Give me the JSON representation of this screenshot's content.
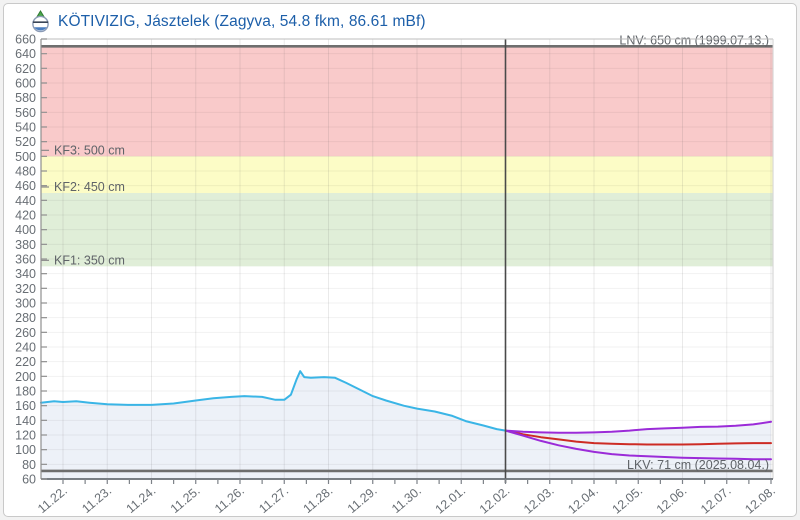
{
  "header": {
    "title": "KÖTIVIZIG, Jásztelek (Zagyva, 54.8 fkm, 86.61 mBf)"
  },
  "colors": {
    "title": "#1d5fa9",
    "observed": "#3ab5e6",
    "forecast_mean": "#cd2b24",
    "forecast_range": "#9b2bd8",
    "reference_line": "#6e6e6e",
    "now_line": "#4a4a4a",
    "band_flood3": "#f9caca",
    "band_flood2": "#fcfcc6",
    "band_flood1": "#e0eed8",
    "area_fill": "#edf1f8",
    "axis_text": "#686e74",
    "label_text": "#5f6368"
  },
  "chart_data": {
    "type": "line",
    "title": "KÖTIVIZIG, Jásztelek (Zagyva, 54.8 fkm, 86.61 mBf)",
    "ylim": [
      60,
      660
    ],
    "y_tick_step": 20,
    "grid": true,
    "x_labels": [
      "11.22.",
      "11.23.",
      "11.24.",
      "11.25.",
      "11.26.",
      "11.27.",
      "11.28.",
      "11.29.",
      "11.30.",
      "12.01.",
      "12.02.",
      "12.03.",
      "12.04.",
      "12.05.",
      "12.06.",
      "12.07.",
      "12.08."
    ],
    "now_index": 10,
    "bands": [
      {
        "id": "flood3",
        "from": 500,
        "to": 650,
        "color": "#f9caca"
      },
      {
        "id": "flood2",
        "from": 450,
        "to": 500,
        "color": "#fcfcc6"
      },
      {
        "id": "flood1",
        "from": 350,
        "to": 450,
        "color": "#e0eed8"
      }
    ],
    "levels": [
      {
        "id": "lnv",
        "label": "LNV: 650 cm (1999.07.13.)",
        "value": 650,
        "line": true,
        "side": "right",
        "dash": false
      },
      {
        "id": "kf3",
        "label": "KF3: 500 cm",
        "value": 500,
        "line": false,
        "side": "left",
        "dash": true
      },
      {
        "id": "kf2",
        "label": "KF2: 450 cm",
        "value": 450,
        "line": false,
        "side": "left",
        "dash": true
      },
      {
        "id": "kf1",
        "label": "KF1: 350 cm",
        "value": 350,
        "line": false,
        "side": "left",
        "dash": true
      },
      {
        "id": "lkv",
        "label": "LKV: 71 cm (2025.08.04.)",
        "value": 71,
        "line": true,
        "side": "right",
        "dash": false
      }
    ],
    "series": [
      {
        "id": "observed",
        "color": "#3ab5e6",
        "width": 2,
        "area": true,
        "points": [
          [
            -0.5,
            164
          ],
          [
            -0.2,
            166
          ],
          [
            0,
            165
          ],
          [
            0.3,
            166
          ],
          [
            0.6,
            164
          ],
          [
            1,
            162
          ],
          [
            1.5,
            161
          ],
          [
            2,
            161
          ],
          [
            2.5,
            163
          ],
          [
            3,
            167
          ],
          [
            3.4,
            170
          ],
          [
            3.8,
            172
          ],
          [
            4.1,
            173
          ],
          [
            4.5,
            172
          ],
          [
            4.8,
            168
          ],
          [
            5.0,
            168
          ],
          [
            5.15,
            175
          ],
          [
            5.28,
            196
          ],
          [
            5.36,
            207
          ],
          [
            5.45,
            199
          ],
          [
            5.6,
            198
          ],
          [
            5.9,
            199
          ],
          [
            6.15,
            198
          ],
          [
            6.4,
            191
          ],
          [
            6.7,
            182
          ],
          [
            7.0,
            173
          ],
          [
            7.3,
            167
          ],
          [
            7.7,
            160
          ],
          [
            8.0,
            156
          ],
          [
            8.4,
            152
          ],
          [
            8.8,
            146
          ],
          [
            9.1,
            139
          ],
          [
            9.5,
            133
          ],
          [
            9.8,
            128
          ],
          [
            10,
            126
          ]
        ]
      },
      {
        "id": "forecast_max",
        "color": "#9b2bd8",
        "width": 2,
        "area": true,
        "points": [
          [
            10,
            126
          ],
          [
            10.4,
            124.5
          ],
          [
            10.8,
            123.5
          ],
          [
            11.2,
            123
          ],
          [
            11.6,
            123
          ],
          [
            12,
            123.5
          ],
          [
            12.4,
            124.5
          ],
          [
            12.8,
            126
          ],
          [
            13.2,
            128
          ],
          [
            13.6,
            129
          ],
          [
            14,
            130
          ],
          [
            14.4,
            131
          ],
          [
            14.8,
            131.5
          ],
          [
            15.2,
            132.5
          ],
          [
            15.6,
            134.5
          ],
          [
            16,
            138
          ]
        ]
      },
      {
        "id": "forecast_mean",
        "color": "#cd2b24",
        "width": 2,
        "area": false,
        "points": [
          [
            10,
            126
          ],
          [
            10.4,
            121
          ],
          [
            10.8,
            117
          ],
          [
            11.2,
            114
          ],
          [
            11.6,
            111
          ],
          [
            12,
            109
          ],
          [
            12.4,
            108
          ],
          [
            12.8,
            107.5
          ],
          [
            13.2,
            107
          ],
          [
            13.6,
            107
          ],
          [
            14,
            107
          ],
          [
            14.4,
            107.5
          ],
          [
            14.8,
            108
          ],
          [
            15.2,
            108.5
          ],
          [
            15.6,
            109
          ],
          [
            16,
            109
          ]
        ]
      },
      {
        "id": "forecast_min",
        "color": "#9b2bd8",
        "width": 2,
        "area": false,
        "points": [
          [
            10,
            126
          ],
          [
            10.4,
            119
          ],
          [
            10.8,
            112
          ],
          [
            11.2,
            106
          ],
          [
            11.6,
            101
          ],
          [
            12,
            97
          ],
          [
            12.4,
            94
          ],
          [
            12.8,
            92
          ],
          [
            13.2,
            91
          ],
          [
            13.6,
            90
          ],
          [
            14,
            89
          ],
          [
            14.4,
            88.5
          ],
          [
            14.8,
            88
          ],
          [
            15.2,
            87.5
          ],
          [
            15.6,
            87
          ],
          [
            16,
            87
          ]
        ]
      }
    ]
  }
}
